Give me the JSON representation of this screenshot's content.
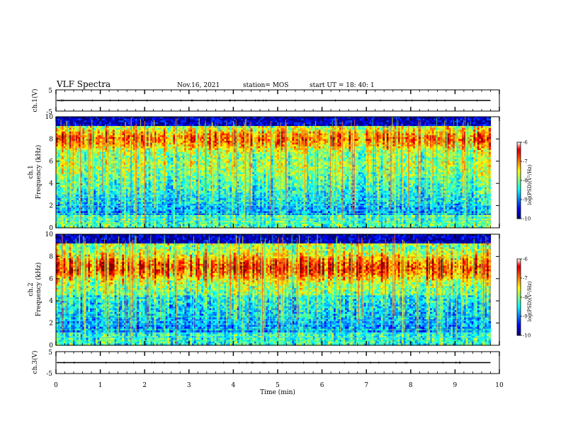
{
  "header": {
    "title": "VLF Spectra",
    "date": "Nov.16, 2021",
    "station": "station= MOS",
    "start": "start  UT =   18: 40: 1"
  },
  "chart_data": [
    {
      "type": "line",
      "name": "ch1-waveform",
      "ylabel": "ch.1(V)",
      "ylim": [
        -5,
        5
      ],
      "yticks": [
        "5",
        "-5"
      ],
      "xlim": [
        0,
        10
      ],
      "trace_level": 0
    },
    {
      "type": "heatmap",
      "name": "ch1-spectrogram",
      "ylabel": "ch.1\nFrequency  (kHz)",
      "ylim": [
        0,
        10
      ],
      "yticks": [
        "0",
        "2",
        "4",
        "6",
        "8",
        "10"
      ],
      "xlim": [
        0,
        9.8
      ],
      "colorbar": {
        "label": "log(PSD)(V²/Hz)",
        "range": [
          -10,
          -6
        ],
        "ticks": [
          "-6",
          "-7",
          "-8",
          "-9",
          "-10"
        ]
      },
      "emission_band_khz": [
        6.0,
        9.2
      ],
      "peak_khz": 8.0,
      "line_interference_khz": [
        0.4,
        0.65,
        0.9,
        1.3,
        1.6,
        2.0,
        2.35,
        2.7,
        3.0
      ]
    },
    {
      "type": "heatmap",
      "name": "ch2-spectrogram",
      "ylabel": "ch.2\nFrequency  (kHz)",
      "ylim": [
        0,
        10
      ],
      "yticks": [
        "0",
        "2",
        "4",
        "6",
        "8",
        "10"
      ],
      "xlim": [
        0,
        9.8
      ],
      "colorbar": {
        "label": "log(PSD)(V²/Hz)",
        "range": [
          -10,
          -6
        ],
        "ticks": [
          "-6",
          "-7",
          "-8",
          "-9",
          "-10"
        ]
      },
      "emission_band_khz": [
        4.5,
        9.0
      ],
      "peak_khz": 7.0,
      "line_interference_khz": [
        0.4,
        0.7,
        1.1,
        1.4,
        1.9,
        2.2,
        2.6
      ]
    },
    {
      "type": "line",
      "name": "ch3-waveform",
      "ylabel": "ch.3(V)",
      "ylim": [
        -5,
        5
      ],
      "yticks": [
        "5",
        "-5"
      ],
      "xlim": [
        0,
        10
      ],
      "trace_level": 0
    }
  ],
  "xaxis": {
    "label": "Time  (min)",
    "range": [
      0,
      10
    ],
    "ticks": [
      "0",
      "1",
      "2",
      "3",
      "4",
      "5",
      "6",
      "7",
      "8",
      "9",
      "10"
    ]
  }
}
